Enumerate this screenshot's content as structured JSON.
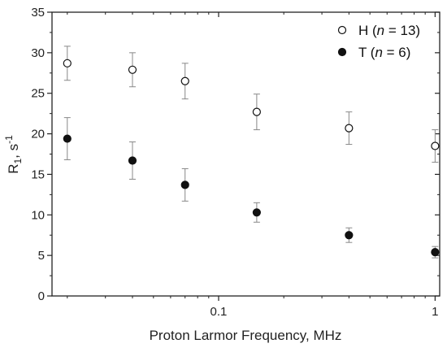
{
  "chart_data": {
    "type": "scatter",
    "xscale": "log",
    "xlim": [
      0.017,
      1.05
    ],
    "ylim": [
      0,
      35
    ],
    "x_ticks": [
      {
        "value": 0.1,
        "label": "0.1"
      },
      {
        "value": 1,
        "label": "1"
      }
    ],
    "y_ticks": [
      0,
      5,
      10,
      15,
      20,
      25,
      30,
      35
    ],
    "xlabel": "Proton Larmor Frequency, MHz",
    "ylabel": {
      "base": "R",
      "sub": "1",
      "mid": ", s",
      "sup": "-1"
    },
    "legend_position": "top-right",
    "series": [
      {
        "legend": {
          "pre": "H (",
          "italic": "n",
          "post": " = 13)"
        },
        "marker": "open-circle",
        "points": [
          {
            "x": 0.02,
            "y": 28.7,
            "err": 2.1
          },
          {
            "x": 0.04,
            "y": 27.9,
            "err": 2.1
          },
          {
            "x": 0.07,
            "y": 26.5,
            "err": 2.2
          },
          {
            "x": 0.15,
            "y": 22.7,
            "err": 2.2
          },
          {
            "x": 0.4,
            "y": 20.7,
            "err": 2.0
          },
          {
            "x": 1.0,
            "y": 18.5,
            "err": 2.0
          }
        ]
      },
      {
        "legend": {
          "pre": "T (",
          "italic": "n",
          "post": " = 6)"
        },
        "marker": "filled-circle",
        "points": [
          {
            "x": 0.02,
            "y": 19.4,
            "err": 2.6
          },
          {
            "x": 0.04,
            "y": 16.7,
            "err": 2.3
          },
          {
            "x": 0.07,
            "y": 13.7,
            "err": 2.0
          },
          {
            "x": 0.15,
            "y": 10.3,
            "err": 1.2
          },
          {
            "x": 0.4,
            "y": 7.5,
            "err": 0.9
          },
          {
            "x": 1.0,
            "y": 5.4,
            "err": 0.7
          }
        ]
      }
    ],
    "colors": {
      "marker": "#111111",
      "error_bar": "#888888",
      "axis": "#222222"
    }
  }
}
